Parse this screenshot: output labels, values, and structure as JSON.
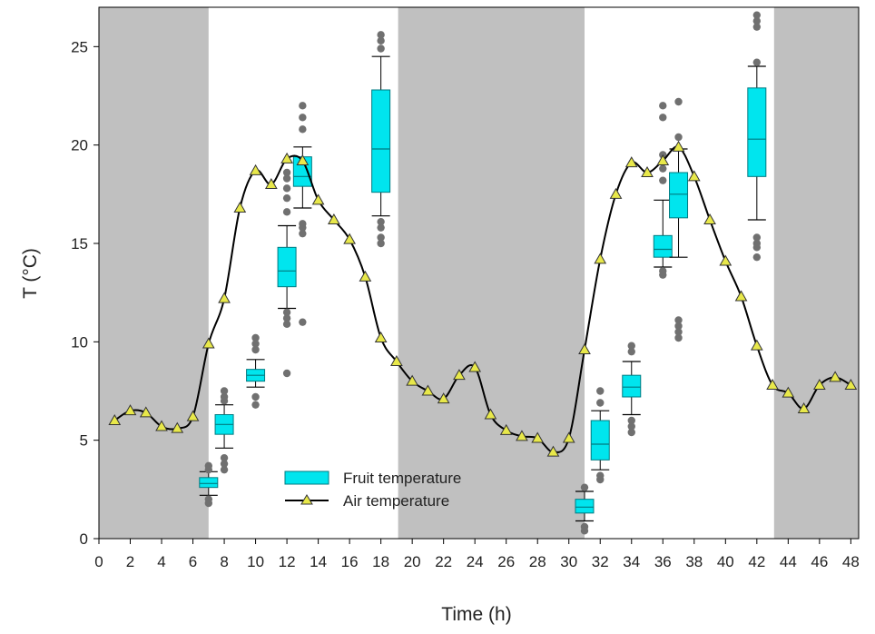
{
  "chart_data": {
    "type": "line",
    "xlabel": "Time (h)",
    "ylabel": "T (°C)",
    "xlim": [
      0,
      48.5
    ],
    "ylim": [
      0,
      27
    ],
    "x_ticks": [
      0,
      2,
      4,
      6,
      8,
      10,
      12,
      14,
      16,
      18,
      20,
      22,
      24,
      26,
      28,
      30,
      32,
      34,
      36,
      38,
      40,
      42,
      44,
      46,
      48
    ],
    "y_ticks": [
      0,
      5,
      10,
      15,
      20,
      25
    ],
    "night_periods": [
      [
        0,
        7
      ],
      [
        19.1,
        31
      ],
      [
        43.1,
        48.5
      ]
    ],
    "colors": {
      "night": "#c0c0c0",
      "box_fill": "#00e5ee",
      "box_stroke": "#007a80",
      "line": "#000000",
      "marker_fill": "#e8e84a",
      "outlier": "#707070"
    },
    "legend": {
      "position": "bottom-center",
      "fruit_label": "Fruit temperature",
      "air_label": "Air temperature"
    },
    "air_temperature": {
      "x": [
        1,
        2,
        3,
        4,
        5,
        6,
        7,
        8,
        9,
        10,
        11,
        12,
        13,
        14,
        15,
        16,
        17,
        18,
        19,
        20,
        21,
        22,
        23,
        24,
        25,
        26,
        27,
        28,
        29,
        30,
        31,
        32,
        33,
        34,
        35,
        36,
        37,
        38,
        39,
        40,
        41,
        42,
        43,
        44,
        45,
        46,
        47,
        48
      ],
      "y": [
        6.0,
        6.5,
        6.4,
        5.7,
        5.6,
        6.2,
        9.9,
        12.2,
        16.8,
        18.7,
        18.0,
        19.3,
        19.2,
        17.2,
        16.2,
        15.2,
        13.3,
        10.2,
        9.0,
        8.0,
        7.5,
        7.1,
        8.3,
        8.7,
        6.3,
        5.5,
        5.2,
        5.1,
        4.4,
        5.1,
        9.6,
        14.2,
        17.5,
        19.1,
        18.6,
        19.2,
        19.9,
        18.4,
        16.2,
        14.1,
        12.3,
        9.8,
        7.8,
        7.4,
        6.6,
        7.8,
        8.2,
        7.8
      ]
    },
    "fruit_temperature": [
      {
        "x": 7,
        "whisker_low": 2.2,
        "q1": 2.6,
        "median": 2.8,
        "q3": 3.1,
        "whisker_high": 3.4,
        "outliers": [
          1.8,
          2.0,
          3.5,
          3.7
        ]
      },
      {
        "x": 8,
        "whisker_low": 4.6,
        "q1": 5.3,
        "median": 5.8,
        "q3": 6.3,
        "whisker_high": 6.8,
        "outliers": [
          3.5,
          3.8,
          4.1,
          7.0,
          7.2,
          7.5
        ]
      },
      {
        "x": 10,
        "whisker_low": 7.7,
        "q1": 8.0,
        "median": 8.3,
        "q3": 8.6,
        "whisker_high": 9.1,
        "outliers": [
          6.8,
          7.2,
          9.6,
          9.9,
          10.2
        ]
      },
      {
        "x": 12,
        "whisker_low": 11.7,
        "q1": 12.8,
        "median": 13.6,
        "q3": 14.8,
        "whisker_high": 15.9,
        "outliers": [
          8.4,
          10.9,
          11.2,
          11.5,
          16.6,
          17.3,
          17.8,
          18.3,
          18.6
        ]
      },
      {
        "x": 13,
        "whisker_low": 16.8,
        "q1": 17.9,
        "median": 18.4,
        "q3": 19.4,
        "whisker_high": 19.9,
        "outliers": [
          11.0,
          15.5,
          15.8,
          16.0,
          20.8,
          21.4,
          22.0
        ]
      },
      {
        "x": 18,
        "whisker_low": 16.4,
        "q1": 17.6,
        "median": 19.8,
        "q3": 22.8,
        "whisker_high": 24.5,
        "outliers": [
          15.0,
          15.3,
          15.8,
          16.1,
          24.9,
          25.3,
          25.6
        ]
      },
      {
        "x": 31,
        "whisker_low": 0.9,
        "q1": 1.3,
        "median": 1.6,
        "q3": 2.0,
        "whisker_high": 2.4,
        "outliers": [
          0.4,
          0.6,
          2.6
        ]
      },
      {
        "x": 32,
        "whisker_low": 3.5,
        "q1": 4.0,
        "median": 4.8,
        "q3": 6.0,
        "whisker_high": 6.5,
        "outliers": [
          3.0,
          3.2,
          6.9,
          7.5
        ]
      },
      {
        "x": 34,
        "whisker_low": 6.3,
        "q1": 7.2,
        "median": 7.7,
        "q3": 8.3,
        "whisker_high": 9.0,
        "outliers": [
          5.4,
          5.7,
          6.0,
          9.5,
          9.8
        ]
      },
      {
        "x": 36,
        "whisker_low": 13.8,
        "q1": 14.3,
        "median": 14.7,
        "q3": 15.4,
        "whisker_high": 17.2,
        "outliers": [
          13.4,
          13.6,
          18.2,
          18.8,
          19.5,
          21.4,
          22.0
        ]
      },
      {
        "x": 37,
        "whisker_low": 14.3,
        "q1": 16.3,
        "median": 17.5,
        "q3": 18.6,
        "whisker_high": 19.8,
        "outliers": [
          10.2,
          10.5,
          10.8,
          11.1,
          20.4,
          22.2
        ]
      },
      {
        "x": 42,
        "whisker_low": 16.2,
        "q1": 18.4,
        "median": 20.3,
        "q3": 22.9,
        "whisker_high": 24.0,
        "outliers": [
          14.3,
          14.8,
          15.0,
          15.3,
          24.2,
          26.0,
          26.3,
          26.6
        ]
      }
    ]
  }
}
